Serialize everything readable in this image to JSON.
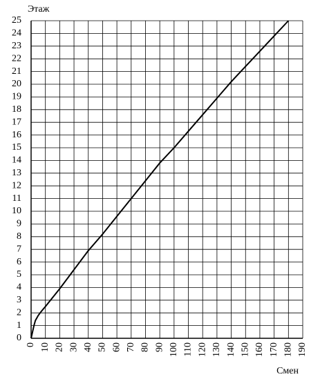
{
  "chart_data": {
    "type": "line",
    "ylabel": "Этаж",
    "xlabel": "Смен",
    "x": [
      0,
      1,
      2,
      3,
      5,
      7,
      10,
      20,
      30,
      40,
      50,
      60,
      70,
      80,
      90,
      100,
      110,
      120,
      130,
      140,
      150,
      160,
      170,
      180
    ],
    "values": [
      0,
      0.5,
      1,
      1.4,
      1.8,
      2.1,
      2.5,
      3.9,
      5.4,
      6.9,
      8.2,
      9.6,
      11,
      12.4,
      13.8,
      15,
      16.3,
      17.6,
      18.9,
      20.2,
      21.4,
      22.6,
      23.8,
      25
    ],
    "color": "#000000",
    "xlim": [
      0,
      190
    ],
    "xticks": [
      0,
      10,
      20,
      30,
      40,
      50,
      60,
      70,
      80,
      90,
      100,
      110,
      120,
      130,
      140,
      150,
      160,
      170,
      180,
      190
    ],
    "ylim": [
      0,
      25
    ],
    "yticks": [
      0,
      1,
      2,
      3,
      4,
      5,
      6,
      7,
      8,
      9,
      10,
      11,
      12,
      13,
      14,
      15,
      16,
      17,
      18,
      19,
      20,
      21,
      22,
      23,
      24,
      25
    ],
    "grid": true
  }
}
